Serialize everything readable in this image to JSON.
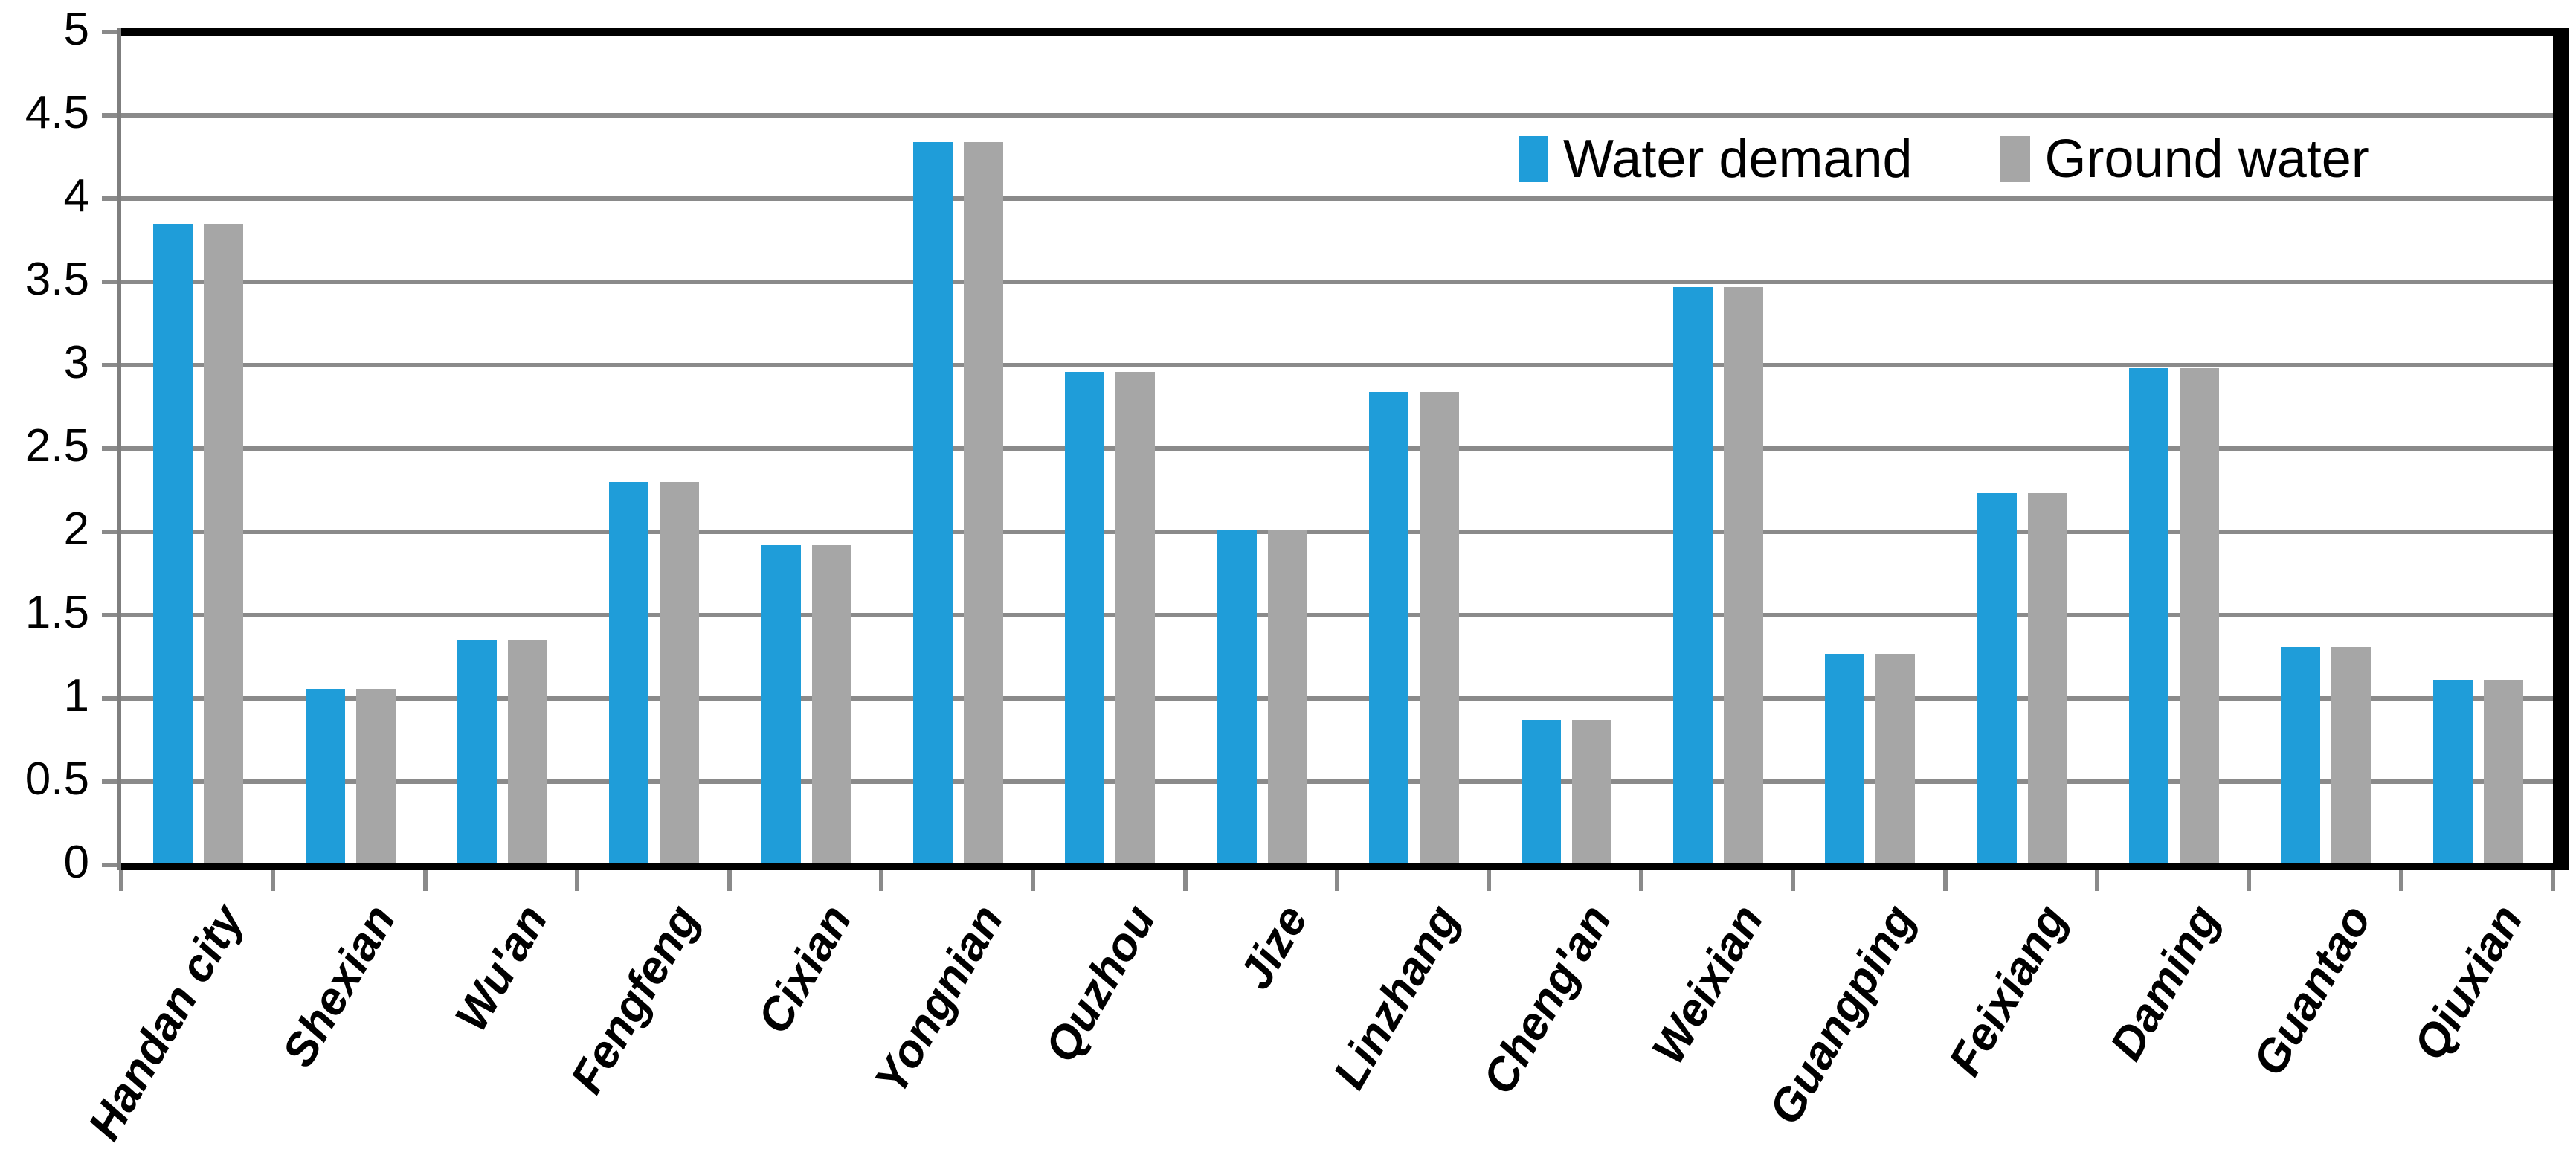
{
  "chart_data": {
    "type": "bar",
    "title": "",
    "xlabel": "",
    "ylabel": "",
    "categories": [
      "Handan city",
      "Shexian",
      "Wu'an",
      "Fengfeng",
      "Cixian",
      "Yongnian",
      "Quzhou",
      "Jize",
      "Linzhang",
      "Cheng'an",
      "Weixian",
      "Guangping",
      "Feixiang",
      "Daming",
      "Guantao",
      "Qiuxian"
    ],
    "series": [
      {
        "name": "Water demand",
        "color": "#1F9DD9",
        "values": [
          3.85,
          1.06,
          1.35,
          2.3,
          1.92,
          4.34,
          2.96,
          2.01,
          2.84,
          0.87,
          3.47,
          1.27,
          2.23,
          2.98,
          1.31,
          1.11
        ]
      },
      {
        "name": "Ground water",
        "color": "#A6A6A6",
        "values": [
          3.85,
          1.06,
          1.35,
          2.3,
          1.92,
          4.34,
          2.96,
          2.01,
          2.84,
          0.87,
          3.47,
          1.27,
          2.23,
          2.98,
          1.31,
          1.11
        ]
      }
    ],
    "ylim": [
      0,
      5
    ],
    "y_tick_labels": [
      "0",
      "0.5",
      "1",
      "1.5",
      "2",
      "2.5",
      "3",
      "3.5",
      "4",
      "4.5",
      "5"
    ],
    "grid": true,
    "legend_position": "inside-top-right",
    "colors": {
      "gridline": "#8A8A8A",
      "axis": "#000000",
      "left_axis": "#7F7F7F",
      "background": "#FFFFFF",
      "text": "#000000"
    }
  }
}
